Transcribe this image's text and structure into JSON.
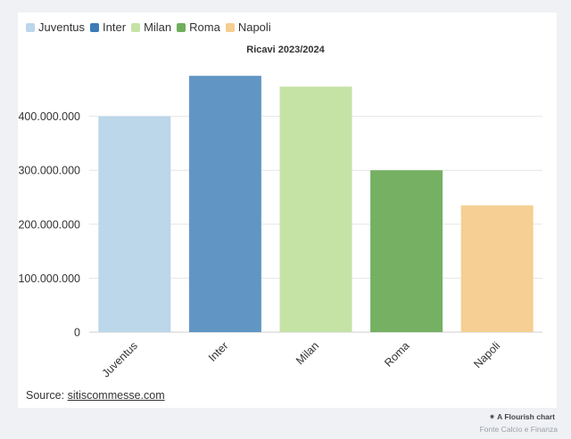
{
  "legend": [
    {
      "label": "Juventus",
      "color": "#bcd6ea"
    },
    {
      "label": "Inter",
      "color": "#3b7bb8"
    },
    {
      "label": "Milan",
      "color": "#c6e3a6"
    },
    {
      "label": "Roma",
      "color": "#6eaf5c"
    },
    {
      "label": "Napoli",
      "color": "#f5cd8e"
    }
  ],
  "source": {
    "prefix": "Source: ",
    "link_text": "sitiscommesse.com"
  },
  "footer": {
    "brand": "A Flourish chart",
    "credit": "Fonte Calcio e Finanza"
  },
  "chart_data": {
    "type": "bar",
    "title": "Ricavi 2023/2024",
    "categories": [
      "Juventus",
      "Inter",
      "Milan",
      "Roma",
      "Napoli"
    ],
    "values": [
      400000000,
      475000000,
      455000000,
      300000000,
      235000000
    ],
    "colors": [
      "#bcd6ea",
      "#6196c4",
      "#c6e3a6",
      "#75b063",
      "#f5cf93"
    ],
    "yticks": [
      0,
      100000000,
      200000000,
      300000000,
      400000000
    ],
    "ytick_labels": [
      "0",
      "100.000.000",
      "200.000.000",
      "300.000.000",
      "400.000.000"
    ],
    "ylim": [
      0,
      500000000
    ],
    "xlabel": "",
    "ylabel": "",
    "grid": true
  }
}
